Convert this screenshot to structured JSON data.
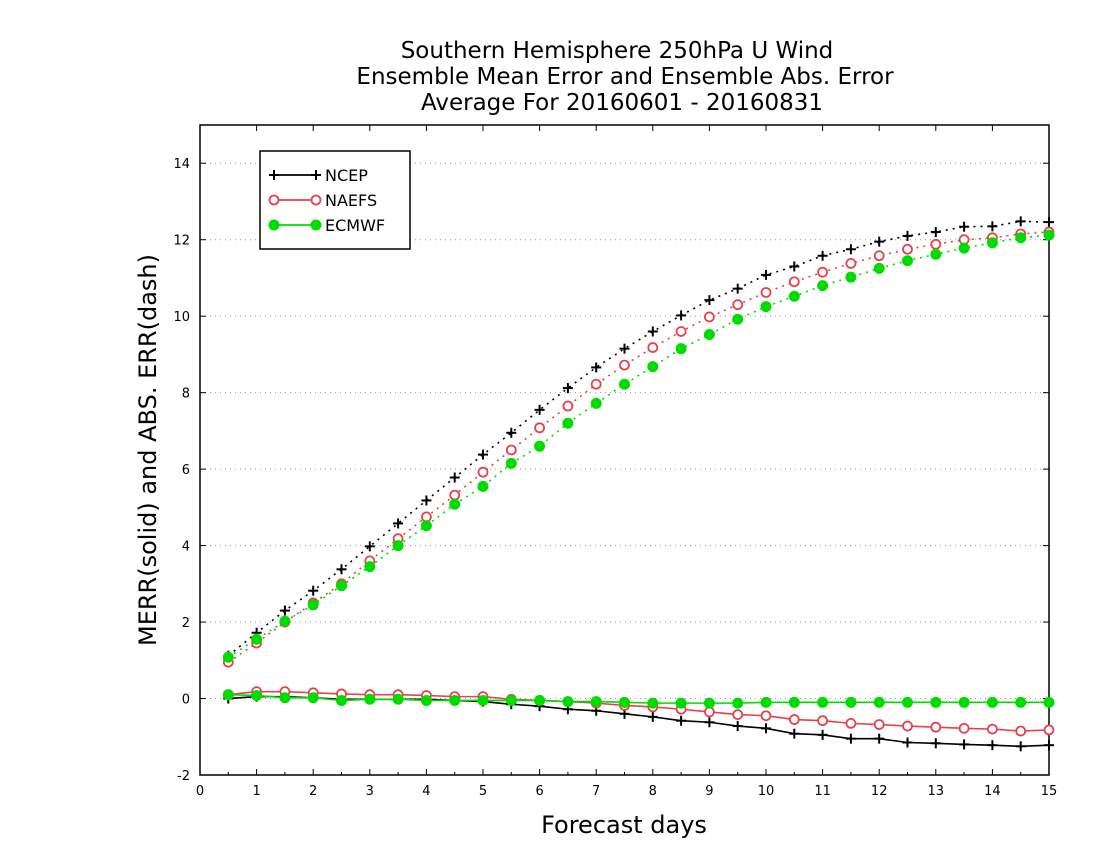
{
  "chart_data": {
    "type": "line",
    "title_lines": [
      "Southern Hemisphere 250hPa U Wind",
      "Ensemble Mean Error and Ensemble Abs. Error",
      "Average For 20160601 - 20160831"
    ],
    "xlabel": "Forecast days",
    "ylabel": "MERR(solid) and ABS. ERR(dash)",
    "xlim": [
      0,
      15
    ],
    "ylim": [
      -2,
      15
    ],
    "xticks": [
      "0",
      "1",
      "2",
      "3",
      "4",
      "5",
      "6",
      "7",
      "8",
      "9",
      "10",
      "11",
      "12",
      "13",
      "14",
      "15"
    ],
    "yticks": [
      "-2",
      "0",
      "2",
      "4",
      "6",
      "8",
      "10",
      "12",
      "14"
    ],
    "grid": "horizontal dotted",
    "legend_position": "top-left",
    "x": [
      0.5,
      1,
      1.5,
      2,
      2.5,
      3,
      3.5,
      4,
      4.5,
      5,
      5.5,
      6,
      6.5,
      7,
      7.5,
      8,
      8.5,
      9,
      9.5,
      10,
      10.5,
      11,
      11.5,
      12,
      12.5,
      13,
      13.5,
      14,
      14.5,
      15
    ],
    "series": [
      {
        "name": "NCEP",
        "color": "#000000",
        "marker": "plus",
        "abs_error": [
          1.12,
          1.72,
          2.3,
          2.82,
          3.38,
          3.98,
          4.58,
          5.18,
          5.78,
          6.38,
          6.95,
          7.55,
          8.12,
          8.66,
          9.15,
          9.6,
          10.02,
          10.42,
          10.72,
          11.08,
          11.3,
          11.58,
          11.75,
          11.95,
          12.1,
          12.2,
          12.34,
          12.35,
          12.48,
          12.46
        ],
        "mean_error": [
          0.0,
          0.05,
          0.05,
          0.02,
          -0.02,
          -0.02,
          -0.02,
          -0.02,
          -0.05,
          -0.08,
          -0.15,
          -0.2,
          -0.28,
          -0.32,
          -0.4,
          -0.48,
          -0.58,
          -0.62,
          -0.72,
          -0.78,
          -0.92,
          -0.95,
          -1.05,
          -1.05,
          -1.15,
          -1.17,
          -1.2,
          -1.22,
          -1.25,
          -1.22
        ]
      },
      {
        "name": "NAEFS",
        "color": "#e8414b",
        "marker": "open-circle",
        "abs_error": [
          0.95,
          1.45,
          2.0,
          2.5,
          3.0,
          3.6,
          4.18,
          4.75,
          5.32,
          5.92,
          6.5,
          7.08,
          7.65,
          8.22,
          8.72,
          9.18,
          9.6,
          9.98,
          10.3,
          10.62,
          10.9,
          11.15,
          11.38,
          11.58,
          11.75,
          11.88,
          12.0,
          12.05,
          12.15,
          12.2
        ],
        "mean_error": [
          0.1,
          0.18,
          0.18,
          0.15,
          0.12,
          0.1,
          0.1,
          0.08,
          0.05,
          0.05,
          -0.02,
          -0.05,
          -0.08,
          -0.12,
          -0.18,
          -0.22,
          -0.28,
          -0.35,
          -0.42,
          -0.45,
          -0.55,
          -0.58,
          -0.65,
          -0.68,
          -0.72,
          -0.75,
          -0.78,
          -0.8,
          -0.85,
          -0.82
        ]
      },
      {
        "name": "ECMWF",
        "color": "#00dc00",
        "marker": "filled-circle",
        "abs_error": [
          1.08,
          1.55,
          2.02,
          2.45,
          2.95,
          3.45,
          4.0,
          4.52,
          5.08,
          5.55,
          6.15,
          6.6,
          7.2,
          7.72,
          8.22,
          8.68,
          9.15,
          9.52,
          9.92,
          10.25,
          10.52,
          10.8,
          11.02,
          11.25,
          11.45,
          11.62,
          11.78,
          11.92,
          12.05,
          12.12
        ],
        "mean_error": [
          0.1,
          0.08,
          0.02,
          0.02,
          -0.05,
          -0.02,
          -0.02,
          -0.05,
          -0.05,
          -0.05,
          -0.05,
          -0.05,
          -0.08,
          -0.08,
          -0.1,
          -0.12,
          -0.12,
          -0.12,
          -0.12,
          -0.1,
          -0.1,
          -0.1,
          -0.1,
          -0.1,
          -0.1,
          -0.1,
          -0.1,
          -0.1,
          -0.1,
          -0.1
        ]
      }
    ]
  }
}
